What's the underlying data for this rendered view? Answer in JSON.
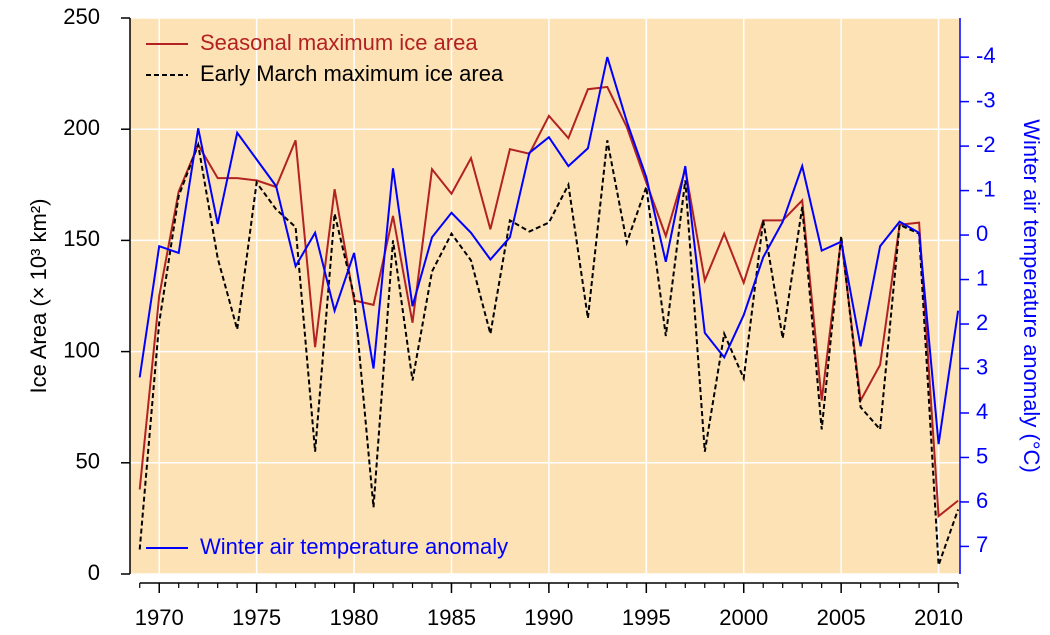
{
  "chart_data": {
    "type": "line",
    "x": [
      1969,
      1970,
      1971,
      1972,
      1973,
      1974,
      1975,
      1976,
      1977,
      1978,
      1979,
      1980,
      1981,
      1982,
      1983,
      1984,
      1985,
      1986,
      1987,
      1988,
      1989,
      1990,
      1991,
      1992,
      1993,
      1994,
      1995,
      1996,
      1997,
      1998,
      1999,
      2000,
      2001,
      2002,
      2003,
      2004,
      2005,
      2006,
      2007,
      2008,
      2009,
      2010,
      2011
    ],
    "series": [
      {
        "name": "Seasonal maximum ice area",
        "color": "#b22222",
        "style": "solid",
        "axis": "y",
        "values": [
          38,
          125,
          172,
          193,
          178,
          178,
          177,
          174,
          195,
          102,
          173,
          123,
          121,
          161,
          113,
          182,
          171,
          187,
          155,
          191,
          189,
          206,
          196,
          218,
          219,
          201,
          176,
          152,
          182,
          132,
          153,
          131,
          159,
          159,
          168,
          78,
          151,
          78,
          94,
          157,
          158,
          26,
          33
        ]
      },
      {
        "name": "Early March maximum ice area",
        "color": "#000000",
        "style": "dashed",
        "axis": "y",
        "values": [
          11,
          113,
          170,
          193,
          142,
          110,
          176,
          164,
          156,
          55,
          162,
          125,
          30,
          150,
          87,
          136,
          153,
          141,
          108,
          159,
          154,
          158,
          175,
          115,
          195,
          149,
          174,
          107,
          177,
          55,
          108,
          88,
          159,
          106,
          165,
          65,
          152,
          75,
          65,
          157,
          153,
          4,
          29
        ]
      },
      {
        "name": "Winter air temperature anomaly",
        "color": "#0000ff",
        "style": "solid",
        "axis": "y2",
        "values": [
          3.2,
          0.25,
          0.4,
          -2.4,
          -0.25,
          -2.3,
          -1.7,
          -1.1,
          0.7,
          -0.05,
          1.7,
          0.4,
          3.0,
          -1.5,
          1.6,
          0.05,
          -0.5,
          -0.05,
          0.55,
          0.05,
          -1.85,
          -2.2,
          -1.55,
          -1.95,
          -4.0,
          -2.55,
          -1.3,
          0.6,
          -1.55,
          2.2,
          2.75,
          1.8,
          0.5,
          -0.3,
          -1.55,
          0.35,
          0.15,
          2.5,
          0.25,
          -0.3,
          -0.05,
          4.7,
          1.7
        ]
      }
    ],
    "ylabel": "Ice Area (× 10³ km²)",
    "y2label": "Winter air temperature anomaly (°C)",
    "xlim": [
      1968.5,
      2011.1
    ],
    "xticks": [
      1970,
      1975,
      1980,
      1985,
      1990,
      1995,
      2000,
      2005,
      2010
    ],
    "ylim": [
      0,
      250
    ],
    "yticks": [
      0,
      50,
      100,
      150,
      200,
      250
    ],
    "y2lim": [
      7.62,
      -4.88
    ],
    "y2ticks": [
      -4,
      -3,
      -2,
      -1,
      0,
      1,
      2,
      3,
      4,
      5,
      6,
      7
    ],
    "y2color": "#0000ff",
    "background": "#fde2b5",
    "grid": true
  }
}
